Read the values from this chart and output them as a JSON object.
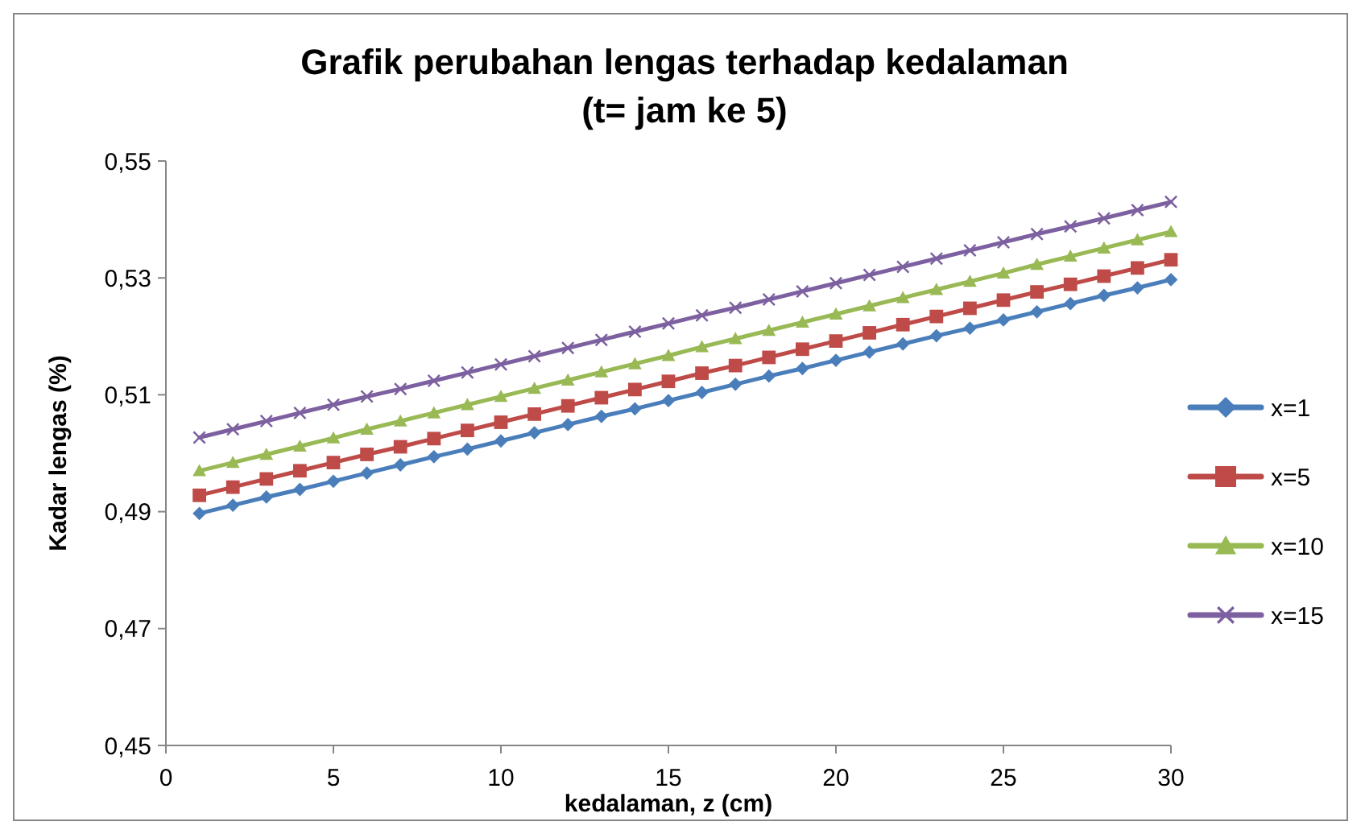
{
  "chart_data": {
    "type": "line",
    "title": "Grafik perubahan lengas terhadap kedalaman",
    "subtitle": "(t= jam  ke 5)",
    "xlabel": "kedalaman, z (cm)",
    "ylabel": "Kadar lengas (%)",
    "x": [
      1,
      2,
      3,
      4,
      5,
      6,
      7,
      8,
      9,
      10,
      11,
      12,
      13,
      14,
      15,
      16,
      17,
      18,
      19,
      20,
      21,
      22,
      23,
      24,
      25,
      26,
      27,
      28,
      29,
      30
    ],
    "xlim": [
      0,
      30
    ],
    "xticks": [
      0,
      5,
      10,
      15,
      20,
      25,
      30
    ],
    "ylim": [
      0.45,
      0.55
    ],
    "yticks": [
      {
        "value": 0.45,
        "label": "0,45"
      },
      {
        "value": 0.47,
        "label": "0,47"
      },
      {
        "value": 0.49,
        "label": "0,49"
      },
      {
        "value": 0.51,
        "label": "0,51"
      },
      {
        "value": 0.53,
        "label": "0,53"
      },
      {
        "value": 0.55,
        "label": "0,55"
      }
    ],
    "legend": "right",
    "line_style": "solid",
    "series": [
      {
        "name": "x=1",
        "color": "#4a7ebb",
        "marker": "diamond",
        "values": [
          0.4897,
          0.4911,
          0.4925,
          0.4938,
          0.4952,
          0.4966,
          0.498,
          0.4994,
          0.5007,
          0.5021,
          0.5035,
          0.5049,
          0.5063,
          0.5076,
          0.509,
          0.5104,
          0.5118,
          0.5132,
          0.5145,
          0.5159,
          0.5173,
          0.5187,
          0.5201,
          0.5214,
          0.5228,
          0.5242,
          0.5256,
          0.527,
          0.5283,
          0.5297
        ]
      },
      {
        "name": "x=5",
        "color": "#be4b48",
        "marker": "square",
        "values": [
          0.4928,
          0.4942,
          0.4956,
          0.497,
          0.4984,
          0.4998,
          0.5011,
          0.5025,
          0.5039,
          0.5053,
          0.5067,
          0.5081,
          0.5095,
          0.5109,
          0.5123,
          0.5137,
          0.515,
          0.5164,
          0.5178,
          0.5192,
          0.5206,
          0.522,
          0.5234,
          0.5248,
          0.5262,
          0.5276,
          0.5289,
          0.5303,
          0.5317,
          0.5331
        ]
      },
      {
        "name": "x=10",
        "color": "#98b954",
        "marker": "triangle",
        "values": [
          0.497,
          0.4984,
          0.4998,
          0.5012,
          0.5026,
          0.5041,
          0.5055,
          0.5069,
          0.5083,
          0.5097,
          0.5111,
          0.5125,
          0.5139,
          0.5153,
          0.5167,
          0.5182,
          0.5196,
          0.521,
          0.5224,
          0.5238,
          0.5252,
          0.5266,
          0.528,
          0.5294,
          0.5308,
          0.5323,
          0.5337,
          0.5351,
          0.5365,
          0.5379
        ]
      },
      {
        "name": "x=15",
        "color": "#7d60a0",
        "marker": "cross",
        "values": [
          0.5027,
          0.5041,
          0.5055,
          0.5069,
          0.5083,
          0.5097,
          0.511,
          0.5124,
          0.5138,
          0.5152,
          0.5166,
          0.518,
          0.5194,
          0.5208,
          0.5222,
          0.5236,
          0.5249,
          0.5263,
          0.5277,
          0.5291,
          0.5305,
          0.5319,
          0.5333,
          0.5347,
          0.5361,
          0.5375,
          0.5388,
          0.5402,
          0.5416,
          0.543
        ]
      }
    ]
  }
}
